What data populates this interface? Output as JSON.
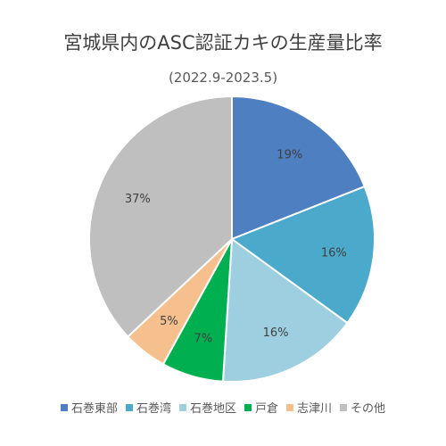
{
  "chart_data": {
    "type": "pie",
    "title": "宮城県内のASC認証カキの生産量比率",
    "subtitle": "(2022.9-2023.5)",
    "categories": [
      "石巻東部",
      "石巻湾",
      "石巻地区",
      "戸倉",
      "志津川",
      "その他"
    ],
    "values": [
      19,
      16,
      16,
      7,
      5,
      37
    ],
    "labels": [
      "19%",
      "16%",
      "16%",
      "7%",
      "5%",
      "37%"
    ],
    "colors": [
      "#4E7FC1",
      "#4BAACB",
      "#9ECFE1",
      "#00B050",
      "#F6C08E",
      "#BFBFBF"
    ],
    "start_angle_deg": 0,
    "direction": "clockwise",
    "legend_position": "bottom"
  }
}
